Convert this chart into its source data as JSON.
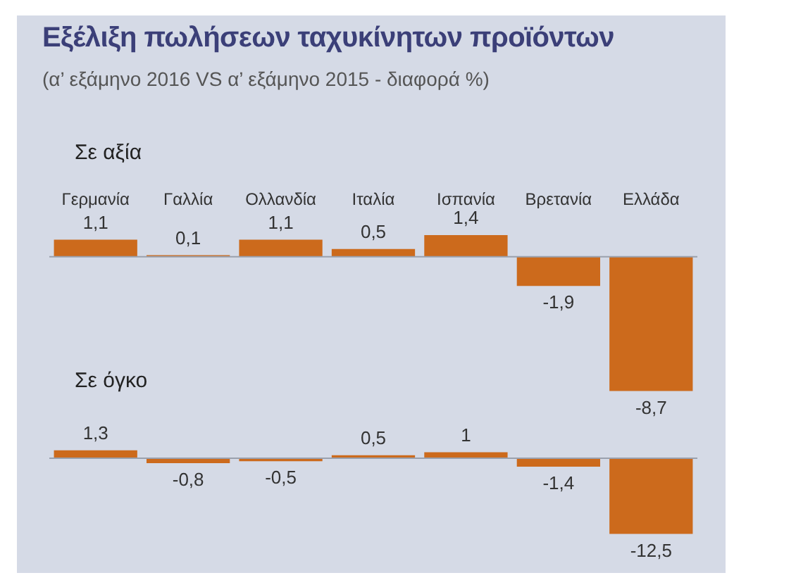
{
  "chart_data": [
    {
      "type": "bar",
      "title": "Εξέλιξη πωλήσεων ταχυκίνητων προϊόντων",
      "subtitle": "(α’ εξάμηνο 2016 VS α’ εξάμηνο 2015 - διαφορά %)",
      "ylabel": "Σε αξία",
      "categories": [
        "Γερμανία",
        "Γαλλία",
        "Ολλανδία",
        "Ιταλία",
        "Ισπανία",
        "Βρετανία",
        "Ελλάδα"
      ],
      "values": [
        1.1,
        0.1,
        1.1,
        0.5,
        1.4,
        -1.9,
        -8.7
      ],
      "color": "#cc6a1c",
      "value_labels": [
        "1,1",
        "0,1",
        "1,1",
        "0,5",
        "1,4",
        "-1,9",
        "-8,7"
      ]
    },
    {
      "type": "bar",
      "ylabel": "Σε όγκο",
      "categories": [
        null,
        null,
        null,
        null,
        null,
        null,
        null
      ],
      "values": [
        1.3,
        -0.8,
        -0.5,
        0.5,
        1,
        -1.4,
        -12.5
      ],
      "color": "#cc6a1c",
      "value_labels": [
        "1,3",
        "-0,8",
        "-0,5",
        "0,5",
        "1",
        "-1,4",
        "-12,5"
      ]
    }
  ]
}
